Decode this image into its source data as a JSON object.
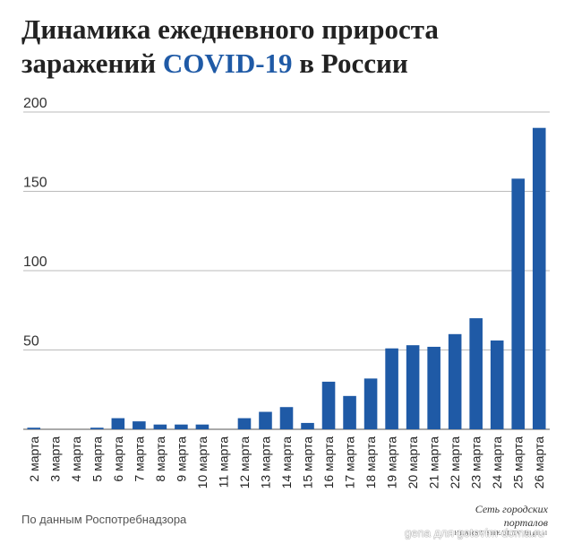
{
  "title": {
    "part1": "Динамика ежедневного прироста заражений ",
    "accent": "COVID-19",
    "part2": " в России"
  },
  "colors": {
    "bar": "#1f5aa6",
    "accent": "#1f5aa6",
    "grid": "#bbbbbb"
  },
  "source": "По данным Роспотребнадзора",
  "logo": {
    "main": "Сеть городских порталов",
    "sub": "HEARST SHKULEV Digital"
  },
  "watermark": "gena для gotovim-doma.ru",
  "chart_data": {
    "type": "bar",
    "title": "Динамика ежедневного прироста заражений COVID-19 в России",
    "xlabel": "",
    "ylabel": "",
    "ylim": [
      0,
      200
    ],
    "yticks": [
      50,
      100,
      150,
      200
    ],
    "grid": true,
    "categories": [
      "2 марта",
      "3 марта",
      "4 марта",
      "5 марта",
      "6 марта",
      "7 марта",
      "8 марта",
      "9 марта",
      "10 марта",
      "11 марта",
      "12 марта",
      "13 марта",
      "14 марта",
      "15 марта",
      "16 марта",
      "17 марта",
      "18 марта",
      "19 марта",
      "20 марта",
      "21 марта",
      "22 марта",
      "23 марта",
      "24 марта",
      "25 марта",
      "26 марта"
    ],
    "values": [
      1,
      0,
      0,
      1,
      7,
      5,
      3,
      3,
      3,
      0,
      7,
      11,
      14,
      4,
      30,
      21,
      32,
      51,
      53,
      52,
      60,
      70,
      56,
      158,
      190
    ]
  }
}
